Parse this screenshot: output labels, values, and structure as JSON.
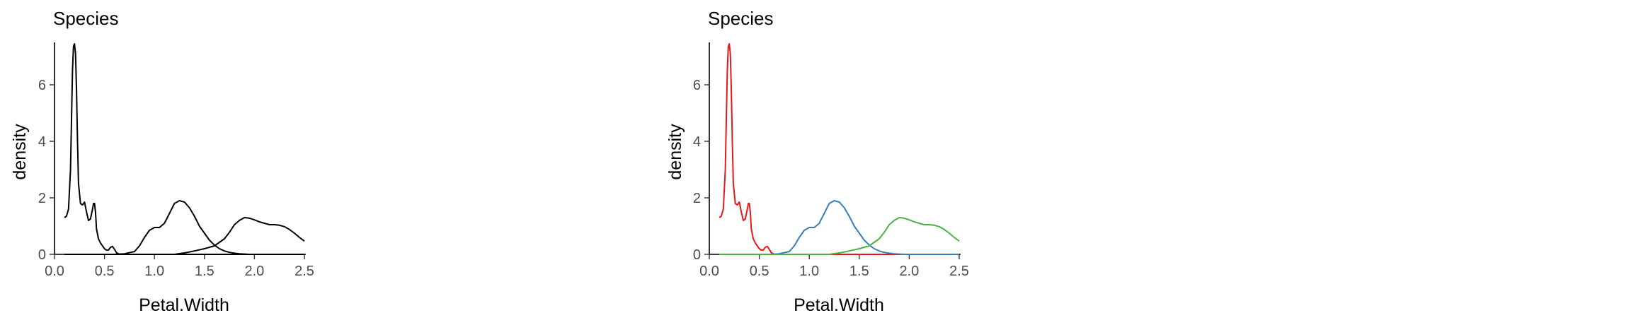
{
  "chart_data": [
    {
      "type": "line",
      "plot": "density",
      "title": "Species",
      "xlabel": "Petal.Width",
      "ylabel": "density",
      "xlim": [
        0.0,
        2.5
      ],
      "ylim": [
        0,
        7.5
      ],
      "xticks": [
        "0.0",
        "0.5",
        "1.0",
        "1.5",
        "2.0",
        "2.5"
      ],
      "yticks": [
        "0",
        "2",
        "4",
        "6"
      ],
      "grid": false,
      "legend": "none",
      "series": [
        {
          "color": "#000000",
          "x": [
            0.1,
            0.12,
            0.14,
            0.16,
            0.18,
            0.19,
            0.2,
            0.21,
            0.22,
            0.23,
            0.24,
            0.26,
            0.28,
            0.3,
            0.32,
            0.34,
            0.36,
            0.38,
            0.39,
            0.4,
            0.41,
            0.42,
            0.44,
            0.46,
            0.48,
            0.5,
            0.52,
            0.54,
            0.56,
            0.58,
            0.6,
            0.62,
            0.64,
            0.66,
            0.7,
            0.8,
            1.0,
            1.5,
            2.0,
            2.5
          ],
          "y": [
            1.3,
            1.35,
            1.6,
            3.0,
            6.5,
            7.35,
            7.45,
            7.1,
            5.8,
            4.0,
            2.5,
            1.8,
            1.75,
            1.85,
            1.5,
            1.2,
            1.25,
            1.6,
            1.8,
            1.8,
            1.5,
            0.9,
            0.55,
            0.4,
            0.3,
            0.2,
            0.15,
            0.15,
            0.25,
            0.28,
            0.18,
            0.06,
            0.02,
            0.0,
            0.0,
            0.0,
            0.0,
            0.0,
            0.0,
            0.0
          ]
        },
        {
          "color": "#000000",
          "x": [
            0.1,
            0.6,
            0.7,
            0.8,
            0.85,
            0.9,
            0.95,
            1.0,
            1.05,
            1.1,
            1.15,
            1.2,
            1.25,
            1.3,
            1.35,
            1.4,
            1.45,
            1.5,
            1.55,
            1.6,
            1.65,
            1.7,
            1.75,
            1.8,
            1.85,
            1.9,
            1.95,
            2.0,
            2.5
          ],
          "y": [
            0.0,
            0.0,
            0.02,
            0.1,
            0.3,
            0.6,
            0.85,
            0.95,
            0.95,
            1.1,
            1.45,
            1.8,
            1.9,
            1.85,
            1.65,
            1.35,
            1.0,
            0.75,
            0.5,
            0.33,
            0.2,
            0.12,
            0.07,
            0.04,
            0.02,
            0.01,
            0.0,
            0.0,
            0.0
          ]
        },
        {
          "color": "#000000",
          "x": [
            0.1,
            1.2,
            1.3,
            1.4,
            1.5,
            1.6,
            1.7,
            1.75,
            1.8,
            1.85,
            1.9,
            1.95,
            2.0,
            2.05,
            2.1,
            2.15,
            2.2,
            2.25,
            2.3,
            2.35,
            2.4,
            2.45,
            2.5
          ],
          "y": [
            0.0,
            0.0,
            0.05,
            0.12,
            0.2,
            0.3,
            0.55,
            0.78,
            1.05,
            1.2,
            1.3,
            1.28,
            1.22,
            1.15,
            1.1,
            1.05,
            1.05,
            1.03,
            0.98,
            0.88,
            0.75,
            0.6,
            0.47
          ]
        }
      ]
    },
    {
      "type": "line",
      "plot": "density",
      "title": "Species",
      "xlabel": "Petal.Width",
      "ylabel": "density",
      "xlim": [
        0.0,
        2.5
      ],
      "ylim": [
        0,
        7.5
      ],
      "xticks": [
        "0.0",
        "0.5",
        "1.0",
        "1.5",
        "2.0",
        "2.5"
      ],
      "yticks": [
        "0",
        "2",
        "4",
        "6"
      ],
      "grid": false,
      "legend": "none",
      "series": [
        {
          "color": "#e41a1c",
          "x": [
            0.1,
            0.12,
            0.14,
            0.16,
            0.18,
            0.19,
            0.2,
            0.21,
            0.22,
            0.23,
            0.24,
            0.26,
            0.28,
            0.3,
            0.32,
            0.34,
            0.36,
            0.38,
            0.39,
            0.4,
            0.41,
            0.42,
            0.44,
            0.46,
            0.48,
            0.5,
            0.52,
            0.54,
            0.56,
            0.58,
            0.6,
            0.62,
            0.64,
            0.66,
            0.7,
            0.8,
            1.0,
            1.5,
            2.0,
            2.5
          ],
          "y": [
            1.3,
            1.35,
            1.6,
            3.0,
            6.5,
            7.35,
            7.45,
            7.1,
            5.8,
            4.0,
            2.5,
            1.8,
            1.75,
            1.85,
            1.5,
            1.2,
            1.25,
            1.6,
            1.8,
            1.8,
            1.5,
            0.9,
            0.55,
            0.4,
            0.3,
            0.2,
            0.15,
            0.15,
            0.25,
            0.28,
            0.18,
            0.06,
            0.02,
            0.0,
            0.0,
            0.0,
            0.0,
            0.0,
            0.0,
            0.0
          ]
        },
        {
          "color": "#377eb8",
          "x": [
            0.1,
            0.6,
            0.7,
            0.8,
            0.85,
            0.9,
            0.95,
            1.0,
            1.05,
            1.1,
            1.15,
            1.2,
            1.25,
            1.3,
            1.35,
            1.4,
            1.45,
            1.5,
            1.55,
            1.6,
            1.65,
            1.7,
            1.75,
            1.8,
            1.85,
            1.9,
            1.95,
            2.0,
            2.5
          ],
          "y": [
            0.0,
            0.0,
            0.02,
            0.1,
            0.3,
            0.6,
            0.85,
            0.95,
            0.95,
            1.1,
            1.45,
            1.8,
            1.9,
            1.85,
            1.65,
            1.35,
            1.0,
            0.75,
            0.5,
            0.33,
            0.2,
            0.12,
            0.07,
            0.04,
            0.02,
            0.01,
            0.0,
            0.0,
            0.0
          ]
        },
        {
          "color": "#4daf4a",
          "x": [
            0.1,
            1.2,
            1.3,
            1.4,
            1.5,
            1.6,
            1.7,
            1.75,
            1.8,
            1.85,
            1.9,
            1.95,
            2.0,
            2.05,
            2.1,
            2.15,
            2.2,
            2.25,
            2.3,
            2.35,
            2.4,
            2.45,
            2.5
          ],
          "y": [
            0.0,
            0.0,
            0.05,
            0.12,
            0.2,
            0.3,
            0.55,
            0.78,
            1.05,
            1.2,
            1.3,
            1.28,
            1.22,
            1.15,
            1.1,
            1.05,
            1.05,
            1.03,
            0.98,
            0.88,
            0.75,
            0.6,
            0.47
          ]
        }
      ]
    }
  ]
}
